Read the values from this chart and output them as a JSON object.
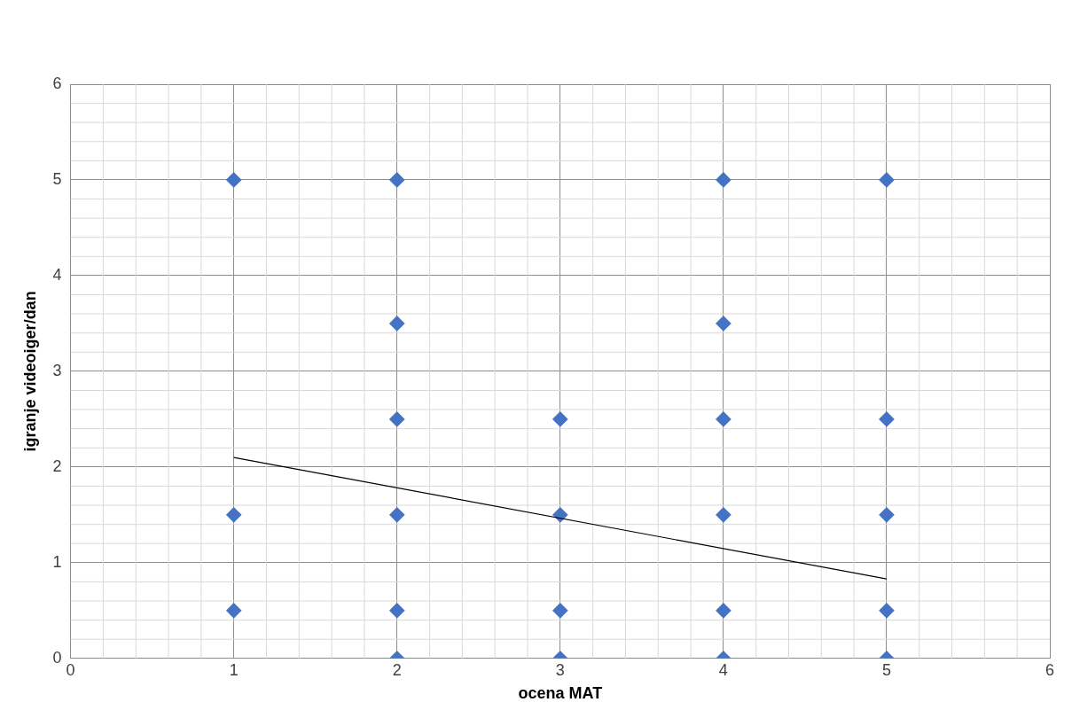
{
  "chart_data": {
    "type": "scatter",
    "xlabel": "ocena MAT",
    "ylabel": "igranje videoiger/dan",
    "xlim": [
      0,
      6
    ],
    "xticks": [
      0,
      1,
      2,
      3,
      4,
      5,
      6
    ],
    "ylim": [
      0,
      6
    ],
    "yticks": [
      0,
      1,
      2,
      3,
      4,
      5,
      6
    ],
    "grid": true,
    "legend": false,
    "marker": "diamond",
    "series": [
      {
        "type": "scatter",
        "color": "#4472c4",
        "x": [
          1,
          1,
          1,
          2,
          2,
          2,
          2,
          2,
          2,
          3,
          3,
          3,
          3,
          4,
          4,
          4,
          4,
          4,
          4,
          5,
          5,
          5,
          5,
          5
        ],
        "values": [
          5,
          1.5,
          0.5,
          5,
          3.5,
          2.5,
          1.5,
          0.5,
          0,
          2.5,
          1.5,
          0.5,
          0,
          5,
          3.5,
          2.5,
          1.5,
          0.5,
          0,
          5,
          2.5,
          1.5,
          0.5,
          0
        ]
      },
      {
        "type": "line",
        "color": "#000000",
        "marker": "none",
        "x": [
          1,
          5
        ],
        "values": [
          2.1,
          0.83
        ]
      }
    ]
  }
}
